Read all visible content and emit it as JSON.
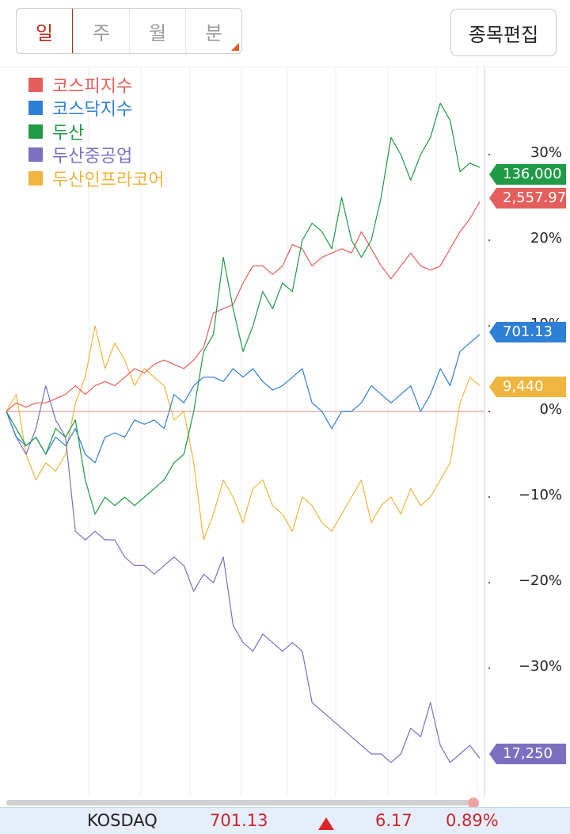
{
  "tabs": {
    "items": [
      {
        "label": "일",
        "active": true
      },
      {
        "label": "주",
        "active": false
      },
      {
        "label": "월",
        "active": false
      },
      {
        "label": "분",
        "active": false
      }
    ]
  },
  "edit_button": {
    "label": "종목편집"
  },
  "chart_data": {
    "type": "line",
    "y_unit": "%",
    "ylim": [
      -43,
      37
    ],
    "ticks": [
      "30%",
      "20%",
      "10%",
      "0%",
      "−10%",
      "−20%",
      "−30%"
    ],
    "tick_values": [
      30,
      20,
      10,
      0,
      -10,
      -20,
      -30
    ],
    "grid": "vertical",
    "legend_position": "top-left",
    "series": [
      {
        "name": "코스피지수",
        "color": "#e45f5b",
        "last_label": "2,557.97",
        "values": [
          0,
          1,
          0.5,
          1,
          1,
          1.5,
          2,
          3,
          2,
          3,
          3.5,
          3,
          4,
          5,
          4.5,
          5.5,
          6,
          5.5,
          5,
          6,
          7.5,
          11.5,
          12,
          12.5,
          15,
          17,
          17,
          16,
          17,
          19.5,
          19,
          17,
          18,
          18.5,
          19,
          18.5,
          21,
          19,
          17,
          15.5,
          17,
          18.5,
          17,
          16.5,
          17,
          19,
          21,
          22.5,
          24.5
        ]
      },
      {
        "name": "코스닥지수",
        "color": "#2e7fd6",
        "last_label": "701.13",
        "values": [
          0,
          -3,
          -4,
          -3,
          -5,
          -3,
          -4,
          -2,
          -5,
          -6,
          -3,
          -2.5,
          -3,
          -1,
          -1.5,
          -1,
          -2,
          2,
          1,
          3,
          4,
          4,
          3.5,
          5,
          4,
          5,
          3.5,
          2.5,
          3,
          4,
          5,
          1,
          0,
          -2,
          0,
          0,
          1,
          3,
          2,
          1,
          2,
          3,
          0,
          2,
          5,
          3,
          7,
          8,
          9
        ]
      },
      {
        "name": "두산",
        "color": "#1f9a46",
        "last_label": "136,000",
        "values": [
          0,
          -2,
          -4,
          -3,
          -5,
          -2,
          -3,
          -1,
          -8,
          -12,
          -10,
          -11,
          -10,
          -11,
          -10,
          -9,
          -8,
          -6,
          -5,
          0,
          7,
          9,
          18,
          12,
          7,
          10,
          14,
          12,
          15,
          14,
          20,
          22,
          21,
          19,
          25,
          20,
          18,
          20,
          25,
          32,
          30,
          27,
          30,
          32,
          36,
          34,
          28,
          29,
          28.5
        ]
      },
      {
        "name": "두산중공업",
        "color": "#7b6fbf",
        "last_label": "17,250",
        "values": [
          0,
          -3,
          -5,
          -2,
          3,
          -1,
          -3,
          -14,
          -15,
          -14,
          -15,
          -15,
          -17,
          -18,
          -18,
          -19,
          -18,
          -17,
          -18,
          -21,
          -19,
          -20,
          -17,
          -25,
          -27,
          -28,
          -26,
          -27,
          -28,
          -27,
          -28,
          -34,
          -35,
          -36,
          -37,
          -38,
          -39,
          -40,
          -40,
          -41,
          -40,
          -37,
          -38,
          -34,
          -39,
          -41,
          -40,
          -39,
          -40.5
        ]
      },
      {
        "name": "두산인프라코어",
        "color": "#f0b53f",
        "last_label": "9,440",
        "values": [
          0,
          2,
          -5,
          -8,
          -6,
          -7,
          -5,
          1,
          4,
          10,
          5,
          8,
          6,
          3,
          5,
          4,
          3,
          -1,
          0,
          -6,
          -15,
          -12,
          -8,
          -10,
          -13,
          -9,
          -8,
          -11,
          -12,
          -14,
          -10,
          -11,
          -13,
          -14,
          -12,
          -10,
          -8,
          -13,
          -11,
          -10,
          -12,
          -9,
          -11,
          -10,
          -8,
          -6,
          1,
          4,
          3
        ]
      }
    ]
  },
  "ticker": {
    "name": "KOSDAQ",
    "price": "701.13",
    "direction_icon": "up-triangle-icon",
    "change": "6.17",
    "percent": "0.89%"
  }
}
